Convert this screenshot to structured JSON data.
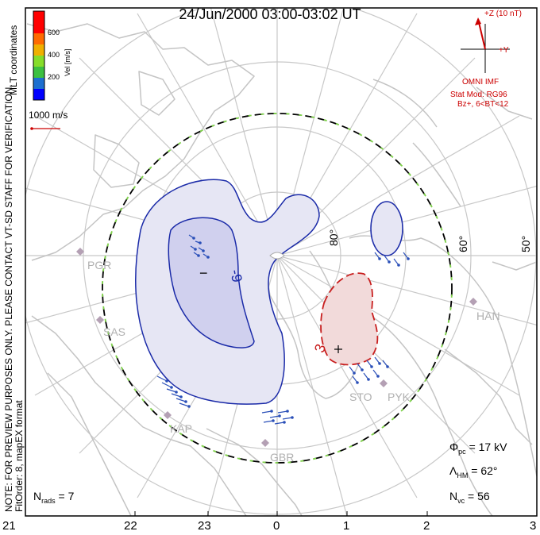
{
  "title": "24/Jun/2000 03:00-03:02 UT",
  "side_notes": {
    "preview": "NOTE: FOR PREVIEW PURPOSES ONLY. PLEASE CONTACT VT-SD STAFF FOR VERIFICATION.",
    "fit_order": "FitOrder: 8, mapEX format",
    "coords": "MLT coordinates"
  },
  "colorbar": {
    "title": "Vel [m/s]",
    "ticks": [
      "200",
      "400",
      "600"
    ],
    "colors": [
      "#0000ff",
      "#1d6fd0",
      "#3cc040",
      "#86dd2a",
      "#f0b000",
      "#ff6a00",
      "#ff0000"
    ]
  },
  "vector_scale": "1000 m/s",
  "imf": {
    "z_label": "+Z (10 nT)",
    "y_label": "+Y",
    "source": "OMNI IMF",
    "model_line1": "Stat Mod: RG96",
    "model_line2": "Bz+, 6<BT<12"
  },
  "lat_labels": [
    "80°",
    "60°",
    "50°"
  ],
  "stations": [
    "PGR",
    "SAS",
    "KAP",
    "GBR",
    "STO",
    "PYK",
    "HAN"
  ],
  "contours": {
    "neg_label": "-9",
    "pos_label": "3",
    "minus": "−",
    "plus": "+"
  },
  "stats": {
    "phi_pc": "= 17 kV",
    "lambda_hm": "= 62°",
    "n_vc": "= 56",
    "n_rads": "= 7"
  },
  "stat_symbols": {
    "phi": "Φ",
    "phi_sub": "pc",
    "lambda": "Λ",
    "lambda_sub": "HM",
    "n": "N",
    "nvc_sub": "vc",
    "nrads_sub": "rads"
  },
  "mlt_axis": [
    "21",
    "22",
    "23",
    "0",
    "1",
    "2",
    "3"
  ]
}
